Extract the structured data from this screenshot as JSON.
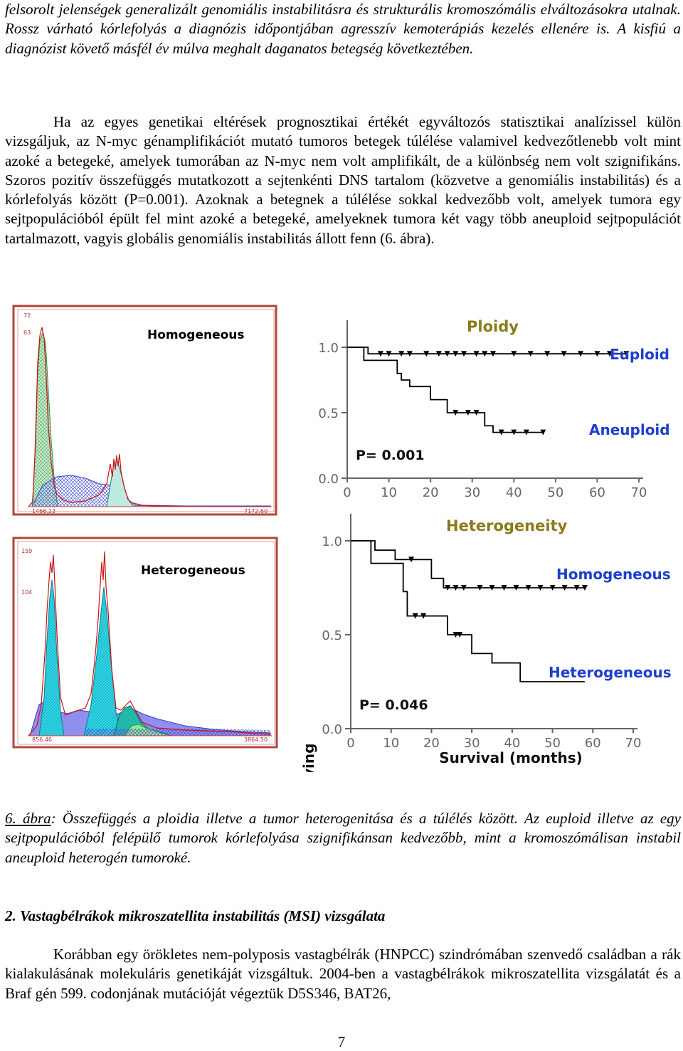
{
  "top_paragraph": "felsorolt jelenségek generalizált genomiális instabilitásra és strukturális kromoszómális elváltozásokra utalnak. Rossz várható kórlefolyás a diagnózis időpontjában agresszív kemoterápiás kezelés ellenére is. A kisfiú a diagnózist követő másfél év múlva meghalt daganatos betegség következtében.",
  "body_paragraph": "Ha az egyes genetikai eltérések prognosztikai értékét egyváltozós statisztikai analízissel külön vizsgáljuk, az N-myc génamplifikációt mutató tumoros betegek túlélése valamivel kedvezőtlenebb volt mint azoké a betegeké, amelyek tumorában az N-myc nem volt amplifikált, de a különbség nem volt szignifikáns. Szoros pozitív összefüggés mutatkozott a sejtenkénti DNS tartalom (közvetve a genomiális instabilitás) és a kórlefolyás között (P=0.001). Azoknak a betegnek a túlélése sokkal kedvezőbb volt, amelyek tumora egy sejtpopulációból épült fel mint azoké a betegeké, amelyeknek tumora két vagy több aneuploid sejtpopulációt tartalmazott, vagyis globális genomiális instabilitás állott fenn (6. ábra).",
  "histograms": {
    "top": {
      "title": "Homogeneous",
      "y_ticks": [
        "72",
        "63"
      ],
      "x_left": "1466.22",
      "x_right": "7172.60"
    },
    "bottom": {
      "title": "Heterogeneous",
      "y_ticks": [
        "159",
        "104"
      ],
      "x_left": "856.46",
      "x_right": "3864.50"
    }
  },
  "chart_data": [
    {
      "type": "line",
      "title": "Ploidy",
      "xlabel": "Survival (months)",
      "ylabel": "Probability surviving",
      "xlim": [
        0,
        70
      ],
      "ylim": [
        0,
        1
      ],
      "x_ticks": [
        "0",
        "10",
        "20",
        "30",
        "40",
        "50",
        "60",
        "70"
      ],
      "y_ticks": [
        "0.0",
        "0.5",
        "1.0"
      ],
      "annotation": "P= 0.001",
      "series": [
        {
          "name": "Euploid",
          "label": "Euploid",
          "color": "#1f3fd0",
          "steps": [
            [
              0,
              1.0
            ],
            [
              5,
              1.0
            ],
            [
              5,
              0.95
            ],
            [
              67,
              0.95
            ]
          ],
          "censored": [
            8,
            10,
            13,
            15,
            19,
            22,
            24,
            26,
            28,
            31,
            33,
            35,
            40,
            44,
            48,
            52,
            56,
            60,
            63,
            67
          ]
        },
        {
          "name": "Aneuploid",
          "label": "Aneuploid",
          "color": "#1f3fd0",
          "steps": [
            [
              0,
              1.0
            ],
            [
              4,
              1.0
            ],
            [
              4,
              0.9
            ],
            [
              12,
              0.9
            ],
            [
              12,
              0.8
            ],
            [
              13,
              0.8
            ],
            [
              13,
              0.75
            ],
            [
              15,
              0.75
            ],
            [
              15,
              0.7
            ],
            [
              20,
              0.7
            ],
            [
              20,
              0.6
            ],
            [
              24,
              0.6
            ],
            [
              24,
              0.5
            ],
            [
              33,
              0.5
            ],
            [
              33,
              0.4
            ],
            [
              35,
              0.4
            ],
            [
              35,
              0.35
            ],
            [
              47,
              0.35
            ]
          ],
          "censored": [
            26,
            29,
            31,
            37,
            40,
            43,
            47
          ]
        }
      ]
    },
    {
      "type": "line",
      "title": "Heterogeneity",
      "xlabel": "Survival (months)",
      "ylabel": "Probability surviving",
      "xlim": [
        0,
        70
      ],
      "ylim": [
        0,
        1
      ],
      "x_ticks": [
        "0",
        "10",
        "20",
        "30",
        "40",
        "50",
        "60",
        "70"
      ],
      "y_ticks": [
        "0.0",
        "0.5",
        "1.0"
      ],
      "annotation": "P= 0.046",
      "series": [
        {
          "name": "Homogeneous",
          "label": "Homogeneous",
          "color": "#1f3fd0",
          "steps": [
            [
              0,
              1.0
            ],
            [
              6,
              1.0
            ],
            [
              6,
              0.95
            ],
            [
              11,
              0.95
            ],
            [
              11,
              0.9
            ],
            [
              20,
              0.9
            ],
            [
              20,
              0.8
            ],
            [
              23,
              0.8
            ],
            [
              23,
              0.75
            ],
            [
              58,
              0.75
            ]
          ],
          "censored": [
            15,
            24,
            26,
            28,
            32,
            35,
            38,
            41,
            44,
            47,
            50,
            53,
            56,
            58
          ]
        },
        {
          "name": "Heterogeneous",
          "label": "Heterogeneous",
          "color": "#1f3fd0",
          "steps": [
            [
              0,
              1.0
            ],
            [
              5,
              1.0
            ],
            [
              5,
              0.88
            ],
            [
              13,
              0.88
            ],
            [
              13,
              0.73
            ],
            [
              14,
              0.73
            ],
            [
              14,
              0.6
            ],
            [
              24,
              0.6
            ],
            [
              24,
              0.5
            ],
            [
              30,
              0.5
            ],
            [
              30,
              0.4
            ],
            [
              35,
              0.4
            ],
            [
              35,
              0.35
            ],
            [
              42,
              0.35
            ],
            [
              42,
              0.25
            ],
            [
              58,
              0.25
            ]
          ],
          "censored": [
            16,
            18,
            26,
            27
          ]
        }
      ]
    }
  ],
  "caption": {
    "label": "6. ábra",
    "text": ": Összefüggés a ploidia illetve a tumor heterogenitása és a túlélés között. Az euploid illetve az egy sejtpopulációból felépülő tumorok kórlefolyása szignifikánsan kedvezőbb, mint a kromoszómálisan instabil aneuploid heterogén tumoroké."
  },
  "section_heading": "2. Vastagbélrákok mikroszatellita instabilitás (MSI)  vizsgálata",
  "section_paragraph": "Korábban egy örökletes nem-polyposis vastagbélrák (HNPCC) szindrómában szenvedő családban a rák kialakulásának molekuláris genetikáját vizsgáltuk. 2004-ben a vastagbélrákok mikroszatellita vizsgálatát és a Braf gén 599. codonjának mutációját végeztük D5S346, BAT26,",
  "page_number": "7"
}
